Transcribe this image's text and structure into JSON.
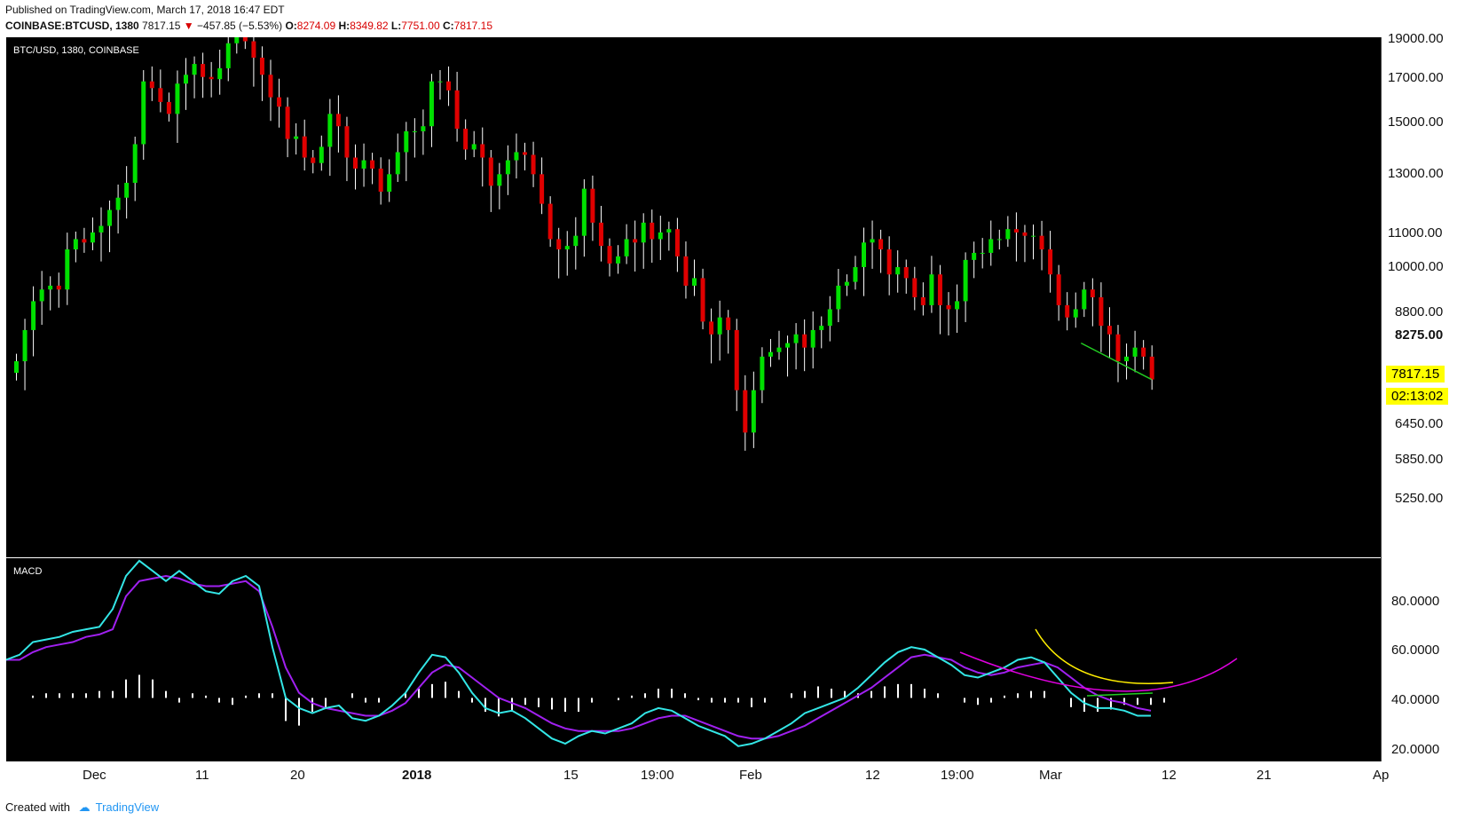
{
  "header": {
    "published": "Published on TradingView.com, March 17, 2018 16:47 EDT",
    "symbol": "COINBASE:BTCUSD, 1380",
    "last": "7817.15",
    "change": "−457.85 (−5.53%)",
    "o_label": "O:",
    "o_value": "8274.09",
    "h_label": "H:",
    "h_value": "8349.82",
    "l_label": "L:",
    "l_value": "7751.00",
    "c_label": "C:",
    "c_value": "7817.15"
  },
  "price_panel": {
    "label": "BTC/USD, 1380, COINBASE"
  },
  "macd_panel": {
    "label": "MACD"
  },
  "price_axis": {
    "ticks": [
      "19000.00",
      "17000.00",
      "15000.00",
      "13000.00",
      "11000.00",
      "10000.00",
      "8800.00",
      "8275.00",
      "6450.00",
      "5850.00",
      "5250.00"
    ],
    "tags": {
      "price": "7817.15",
      "countdown": "02:13:02"
    }
  },
  "macd_axis": {
    "ticks": [
      "80.0000",
      "60.0000",
      "40.0000",
      "20.0000"
    ]
  },
  "time_axis": {
    "labels": [
      "Dec",
      "11",
      "20",
      "2018",
      "15",
      "19:00",
      "Feb",
      "12",
      "19:00",
      "Mar",
      "12",
      "21",
      "Ap"
    ]
  },
  "footer": {
    "created": "Created with",
    "brand": "TradingView"
  },
  "colors": {
    "up": "#00e000",
    "down": "#e00000",
    "macd": "#33e6e6",
    "signal": "#a020f0",
    "hist": "#ffffff",
    "trend": "#22cc22",
    "arc_magenta": "#e000e0",
    "arc_yellow": "#ffee00",
    "tag_bg": "#ffff00"
  },
  "chart_data": [
    {
      "type": "candlestick",
      "title": "BTC/USD, 1380, COINBASE",
      "y_scale": "log",
      "ylim": [
        4900,
        19200
      ],
      "x_start": "2017-11-27",
      "x_end": "2018-04-01",
      "x_labels": [
        "Dec",
        "11",
        "20",
        "2018",
        "15",
        "19:00",
        "Feb",
        "12",
        "19:00",
        "Mar",
        "12",
        "21",
        "Ap"
      ],
      "closes": [
        8200,
        8900,
        9600,
        9900,
        10000,
        9900,
        11000,
        11300,
        11200,
        11500,
        11700,
        12200,
        12600,
        13100,
        14500,
        17100,
        16800,
        16200,
        15700,
        17000,
        17400,
        17900,
        17300,
        17200,
        17700,
        18900,
        19200,
        19000,
        18200,
        17400,
        16400,
        16000,
        14700,
        14800,
        14000,
        13800,
        14400,
        15700,
        15200,
        14000,
        13600,
        13900,
        13600,
        12800,
        13400,
        14200,
        15000,
        15000,
        15200,
        17100,
        17100,
        16700,
        15100,
        14300,
        14500,
        14000,
        13000,
        13400,
        13900,
        14200,
        14100,
        13400,
        12400,
        11300,
        11000,
        11100,
        11400,
        12900,
        11800,
        11100,
        10600,
        10800,
        11300,
        11200,
        11800,
        11300,
        11500,
        11600,
        10800,
        10000,
        10200,
        9100,
        8800,
        9200,
        8900,
        7600,
        6800,
        7600,
        8300,
        8400,
        8500,
        8600,
        8800,
        8500,
        8900,
        9000,
        9400,
        10000,
        10100,
        10500,
        11200,
        11300,
        11000,
        10300,
        10500,
        10200,
        9700,
        9500,
        10300,
        9500,
        9400,
        9600,
        10700,
        10900,
        10900,
        11300,
        11300,
        11600,
        11500,
        11400,
        11400,
        11000,
        10300,
        9500,
        9200,
        9400,
        9900,
        9700,
        9000,
        8800,
        8200,
        8300,
        8500,
        8300,
        7817.15
      ],
      "wick_examples": {
        "lowest_low": 5850,
        "highest_high": 19800
      },
      "annotations": [
        {
          "type": "trendline",
          "from_value": 8600,
          "to_value": 7817.15,
          "note": "falling support line"
        }
      ]
    },
    {
      "type": "line",
      "title": "MACD",
      "ylim": [
        15,
        95
      ],
      "series": [
        {
          "name": "MACD",
          "values": [
            55,
            57,
            62,
            63,
            64,
            66,
            67,
            68,
            75,
            88,
            94,
            90,
            86,
            90,
            86,
            82,
            81,
            86,
            88,
            84,
            60,
            40,
            36,
            34,
            36,
            37,
            32,
            31,
            33,
            37,
            42,
            50,
            57,
            56,
            50,
            42,
            36,
            34,
            35,
            32,
            28,
            24,
            22,
            25,
            27,
            26,
            28,
            30,
            34,
            36,
            35,
            32,
            29,
            27,
            25,
            21,
            22,
            24,
            27,
            30,
            34,
            36,
            38,
            40,
            44,
            49,
            54,
            58,
            60,
            59,
            56,
            53,
            49,
            48,
            50,
            52,
            55,
            56,
            54,
            48,
            42,
            38,
            36,
            36,
            35,
            33,
            33
          ]
        },
        {
          "name": "Signal",
          "values": [
            55,
            55,
            58,
            60,
            61,
            62,
            64,
            65,
            67,
            80,
            86,
            87,
            88,
            87,
            85,
            84,
            84,
            85,
            86,
            82,
            68,
            52,
            42,
            38,
            36,
            35,
            34,
            33,
            33,
            35,
            38,
            44,
            50,
            53,
            52,
            48,
            44,
            40,
            38,
            36,
            33,
            30,
            28,
            27,
            27,
            27,
            27,
            28,
            30,
            32,
            33,
            33,
            31,
            29,
            27,
            25,
            24,
            24,
            25,
            27,
            29,
            32,
            35,
            38,
            41,
            44,
            48,
            52,
            56,
            57,
            56,
            55,
            52,
            50,
            49,
            50,
            52,
            53,
            54,
            52,
            48,
            44,
            41,
            39,
            38,
            36,
            35
          ]
        },
        {
          "name": "Histogram",
          "values": [
            0,
            1,
            2,
            2,
            2,
            2,
            3,
            3,
            8,
            10,
            8,
            3,
            -2,
            2,
            1,
            -2,
            -3,
            1,
            2,
            2,
            -10,
            -12,
            -6,
            -4,
            0,
            2,
            -2,
            -2,
            0,
            2,
            4,
            6,
            7,
            3,
            -2,
            -6,
            -8,
            -6,
            -3,
            -4,
            -5,
            -6,
            -6,
            -2,
            0,
            -1,
            1,
            2,
            4,
            4,
            2,
            -1,
            -2,
            -2,
            -2,
            -4,
            -2,
            0,
            2,
            3,
            5,
            4,
            3,
            2,
            3,
            5,
            6,
            6,
            4,
            2,
            0,
            -2,
            -3,
            -2,
            1,
            2,
            3,
            3,
            0,
            -4,
            -6,
            -6,
            -5,
            -3,
            -3,
            -3,
            -2
          ]
        }
      ],
      "annotations": [
        {
          "type": "trendline",
          "note": "rising green line under MACD lows"
        },
        {
          "type": "arc",
          "note": "magenta rounded bottom projection"
        },
        {
          "type": "arc",
          "note": "yellow curve on signal"
        }
      ]
    }
  ]
}
